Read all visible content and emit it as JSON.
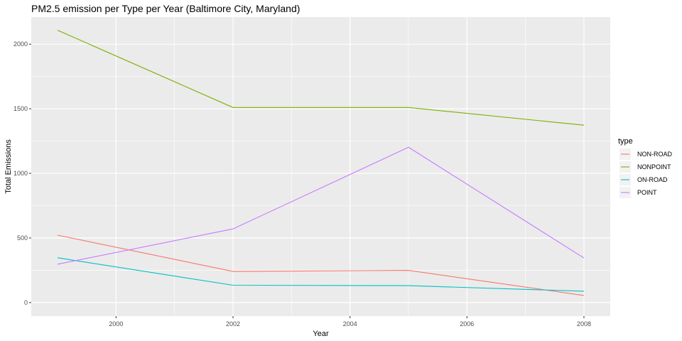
{
  "chart_data": {
    "type": "line",
    "title": "PM2.5 emission per Type per Year (Baltimore City, Maryland)",
    "xlabel": "Year",
    "ylabel": "Total Emissions",
    "x": [
      1999,
      2002,
      2005,
      2008
    ],
    "xlim": [
      1998.55,
      2008.45
    ],
    "ylim": [
      -105,
      2210
    ],
    "xticks": [
      2000,
      2002,
      2004,
      2006,
      2008
    ],
    "yticks": [
      0,
      500,
      1000,
      1500,
      2000
    ],
    "grid": true,
    "legend": {
      "title": "type",
      "position": "right"
    },
    "series": [
      {
        "name": "NON-ROAD",
        "color": "#F8766D",
        "values": [
          522,
          241,
          249,
          55
        ]
      },
      {
        "name": "NONPOINT",
        "color": "#7CAE00",
        "values": [
          2108,
          1510,
          1510,
          1373
        ]
      },
      {
        "name": "ON-ROAD",
        "color": "#00BFC4",
        "values": [
          347,
          134,
          131,
          88
        ]
      },
      {
        "name": "POINT",
        "color": "#C77CFF",
        "values": [
          297,
          570,
          1202,
          345
        ]
      }
    ]
  }
}
